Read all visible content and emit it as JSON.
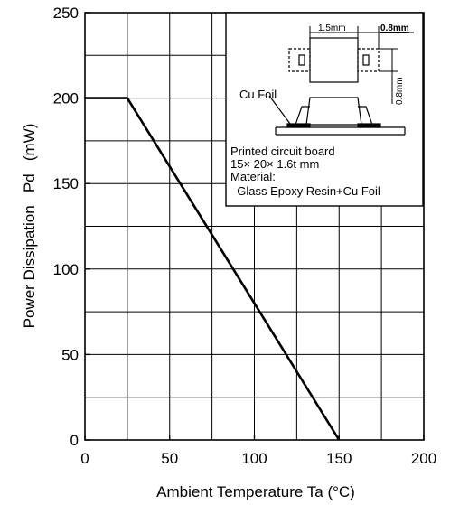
{
  "chart_data": {
    "type": "line",
    "title": "",
    "xlabel": "Ambient Temperature Ta (°C)",
    "ylabel": "Power Dissipation   Pd   (mW)",
    "xlim": [
      0,
      200
    ],
    "ylim": [
      0,
      250
    ],
    "x_ticks": [
      0,
      50,
      100,
      150,
      200
    ],
    "y_ticks": [
      0,
      50,
      100,
      150,
      200,
      250
    ],
    "x_gridlines": [
      0,
      25,
      50,
      75,
      100,
      125,
      150,
      175,
      200
    ],
    "y_gridlines": [
      0,
      25,
      50,
      75,
      100,
      125,
      150,
      175,
      200,
      225,
      250
    ],
    "grid": true,
    "series": [
      {
        "x": [
          0,
          25,
          150
        ],
        "y": [
          200,
          200,
          0
        ]
      }
    ]
  },
  "inset": {
    "dim_width": "1.5mm",
    "dim_pad": "0.8mm",
    "dim_height": "0.8mm",
    "foil_label": "Cu Foil",
    "notes": [
      "Printed circuit board",
      "15× 20× 1.6t mm",
      "Material:",
      "  Glass Epoxy Resin+Cu Foil"
    ]
  }
}
